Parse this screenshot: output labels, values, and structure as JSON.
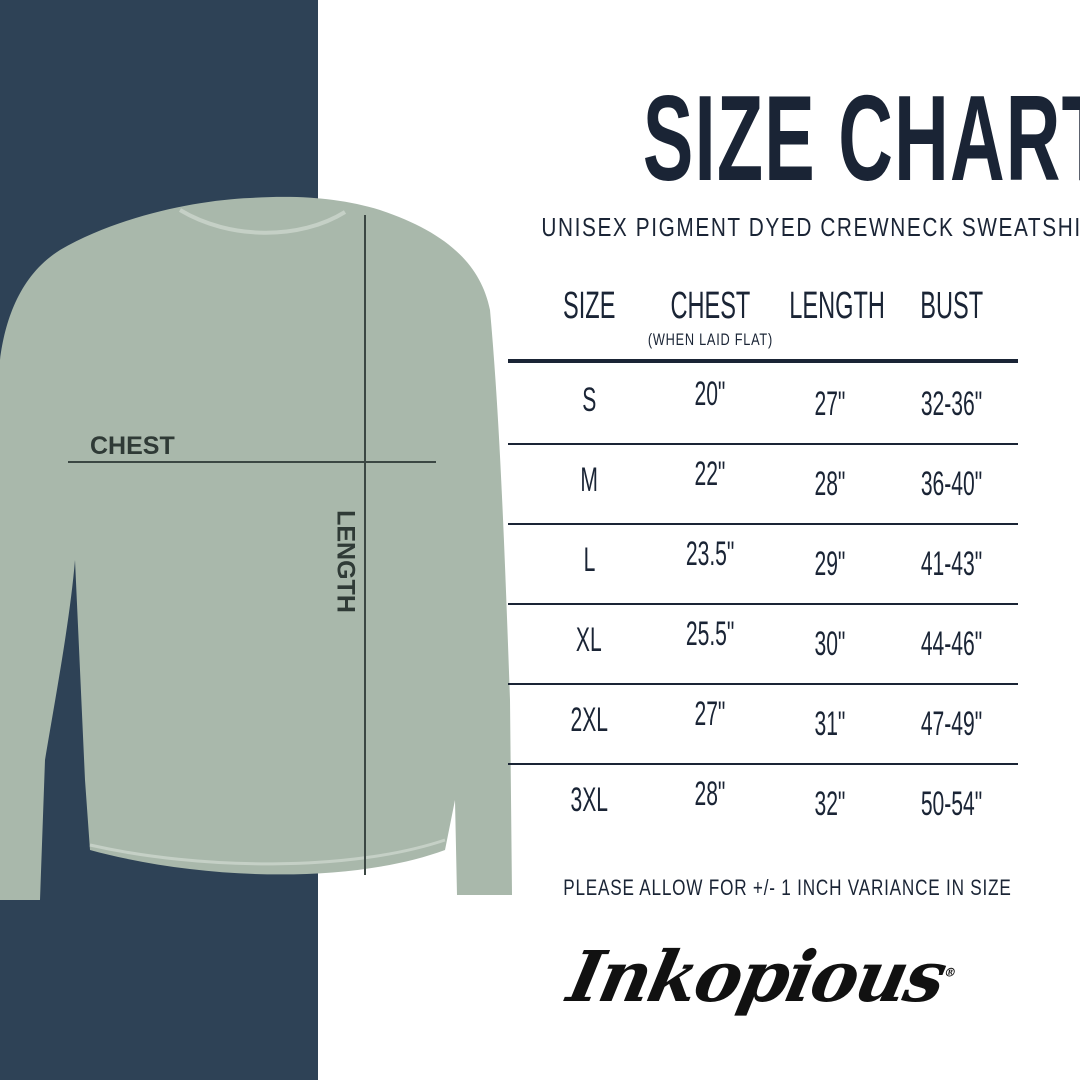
{
  "title": "SIZE CHART",
  "subtitle": "UNISEX PIGMENT DYED CREWNECK SWEATSHIRT",
  "diagram": {
    "chest_label": "CHEST",
    "length_label": "LENGTH"
  },
  "table": {
    "headers": [
      "SIZE",
      "CHEST",
      "LENGTH",
      "BUST"
    ],
    "chest_note": "(WHEN LAID FLAT)",
    "rows": [
      [
        "S",
        "20\"",
        "27\"",
        "32-36\""
      ],
      [
        "M",
        "22\"",
        "28\"",
        "36-40\""
      ],
      [
        "L",
        "23.5\"",
        "29\"",
        "41-43\""
      ],
      [
        "XL",
        "25.5\"",
        "30\"",
        "44-46\""
      ],
      [
        "2XL",
        "27\"",
        "31\"",
        "47-49\""
      ],
      [
        "3XL",
        "28\"",
        "32\"",
        "50-54\""
      ]
    ]
  },
  "note": "PLEASE ALLOW FOR +/- 1 INCH VARIANCE IN SIZE",
  "brand": "Inkopious",
  "colors": {
    "navy_panel": "#2e4256",
    "text": "#1a2435",
    "sweatshirt": "#a9b8ab"
  }
}
